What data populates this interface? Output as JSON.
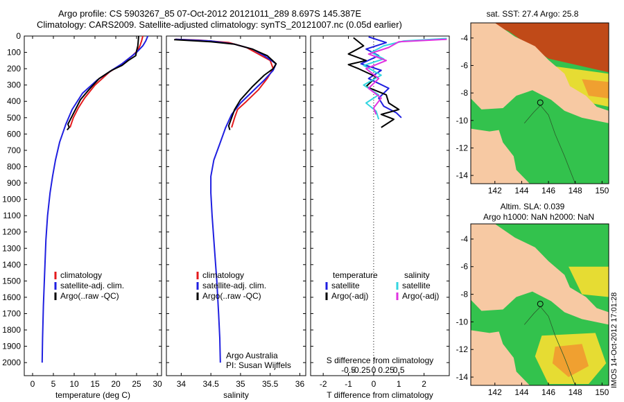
{
  "header": {
    "line1": "Argo profile: CS 5903267_85 07-Oct-2012 20121011_289 8.697S 145.387E",
    "line2": "Climatology: CARS2009. Satellite-adjusted climatology: synTS_20121007.nc (0.05d earlier)"
  },
  "colors": {
    "climatology": "#e31a1c",
    "satellite": "#1f1fe0",
    "argo": "#000000",
    "sat_salinity": "#33d6e0",
    "argo_salinity_adj": "#e033e0",
    "land": "#f7c9a3",
    "sea_green": "#33c24d",
    "sea_yellow": "#e6dc33",
    "sea_orange": "#f0a030",
    "sea_red": "#c04a18"
  },
  "chart_data": [
    {
      "type": "line",
      "id": "temperature",
      "xlabel": "temperature (deg C)",
      "ylabel": "",
      "xlim": [
        -2,
        31
      ],
      "ylim": [
        2080,
        0
      ],
      "xticks": [
        0,
        5,
        10,
        15,
        20,
        25,
        30
      ],
      "yticks": [
        0,
        100,
        200,
        300,
        400,
        500,
        600,
        700,
        800,
        900,
        1000,
        1100,
        1200,
        1300,
        1400,
        1500,
        1600,
        1700,
        1800,
        1900,
        2000
      ],
      "legend": [
        "climatology",
        "satellite-adj. clim.",
        "Argo(..raw -QC)"
      ],
      "series": [
        {
          "name": "climatology",
          "x": [
            26.5,
            26.2,
            25.8,
            25.2,
            24.0,
            22.5,
            21.0,
            18.5,
            15.0,
            12.5,
            11.0,
            9.8,
            9.0
          ],
          "y": [
            0,
            30,
            60,
            90,
            120,
            150,
            180,
            220,
            300,
            380,
            440,
            500,
            560
          ]
        },
        {
          "name": "satellite-adj. clim.",
          "x": [
            27.7,
            27.2,
            26.5,
            25.0,
            23.5,
            21.5,
            19.0,
            15.5,
            12.0,
            9.5,
            8.0,
            6.5,
            5.5,
            4.8,
            4.2,
            3.6,
            3.2,
            2.9,
            2.6,
            2.4,
            2.3
          ],
          "y": [
            0,
            30,
            60,
            100,
            130,
            170,
            210,
            270,
            350,
            450,
            540,
            650,
            760,
            860,
            960,
            1100,
            1250,
            1450,
            1650,
            1850,
            2000
          ]
        },
        {
          "name": "Argo(..raw -QC)",
          "x": [
            25.5,
            25.4,
            25.3,
            25.0,
            24.8,
            23.0,
            21.5,
            19.0,
            16.0,
            13.5,
            11.5,
            10.5,
            9.5,
            8.5,
            8.8,
            8.3
          ],
          "y": [
            0,
            30,
            60,
            90,
            120,
            150,
            180,
            210,
            260,
            330,
            390,
            440,
            490,
            540,
            560,
            575
          ]
        }
      ]
    },
    {
      "type": "line",
      "id": "salinity",
      "xlabel": "salinity",
      "ylabel": "",
      "xlim": [
        33.75,
        36.1
      ],
      "ylim": [
        2080,
        0
      ],
      "xticks": [
        34,
        34.5,
        35,
        35.5,
        36
      ],
      "xticklabels": [
        "34",
        "34.5",
        "35",
        "35.5",
        "36"
      ],
      "legend": [
        "climatology",
        "satellite-adj. clim.",
        "Argo(..raw -QC)"
      ],
      "annotation": [
        "Argo Australia",
        "PI: Susan Wijffels"
      ],
      "series": [
        {
          "name": "climatology",
          "x": [
            33.9,
            34.3,
            34.8,
            35.1,
            35.3,
            35.5,
            35.55,
            35.45,
            35.3,
            35.1,
            34.95,
            34.9,
            34.85
          ],
          "y": [
            20,
            25,
            40,
            70,
            110,
            150,
            200,
            260,
            330,
            400,
            450,
            500,
            560
          ]
        },
        {
          "name": "satellite-adj. clim.",
          "x": [
            33.9,
            34.5,
            34.9,
            35.2,
            35.4,
            35.6,
            35.55,
            35.4,
            35.2,
            35.0,
            34.85,
            34.75,
            34.65,
            34.55,
            34.5,
            34.5,
            34.52,
            34.56,
            34.6,
            34.63,
            34.65,
            34.66
          ],
          "y": [
            20,
            30,
            50,
            80,
            120,
            170,
            210,
            270,
            340,
            410,
            480,
            560,
            660,
            760,
            860,
            960,
            1100,
            1300,
            1500,
            1700,
            1850,
            2000
          ]
        },
        {
          "name": "Argo(..raw -QC)",
          "x": [
            33.88,
            34.5,
            34.9,
            35.2,
            35.45,
            35.6,
            35.55,
            35.4,
            35.2,
            35.0,
            34.9,
            34.85,
            34.8,
            34.82
          ],
          "y": [
            22,
            35,
            50,
            80,
            120,
            170,
            200,
            240,
            310,
            390,
            450,
            500,
            550,
            575
          ]
        }
      ]
    },
    {
      "type": "line",
      "id": "differences",
      "xlabel": "T difference from climatology",
      "xlabel2": "S difference from climatology",
      "xlim": [
        -2.5,
        3.0
      ],
      "ylim": [
        2080,
        0
      ],
      "xticks": [
        -2,
        -1,
        0,
        1,
        2
      ],
      "xticks_s": [
        -0.5,
        -0.25,
        0,
        0.25,
        0.5
      ],
      "xticklabels_s": [
        "-0.5",
        "-0.25",
        "0",
        "0.25",
        "0.5"
      ],
      "legend_titles": [
        "temperature",
        "salinity"
      ],
      "legend": [
        "satellite",
        "Argo(-adj)",
        "satellite",
        "Argo(-adj)"
      ],
      "series": [
        {
          "name": "temperature satellite",
          "x": [
            -0.2,
            0.5,
            -0.3,
            0.2,
            -0.5,
            0.3,
            -0.2,
            0.6,
            0.2,
            0.4,
            0.9,
            1.1
          ],
          "y": [
            5,
            40,
            80,
            120,
            170,
            210,
            260,
            320,
            380,
            430,
            470,
            500
          ]
        },
        {
          "name": "temperature Argo(-adj)",
          "x": [
            -0.8,
            -0.4,
            -1.0,
            -0.3,
            -1.0,
            -0.6,
            0.1,
            -0.3,
            0.5,
            0.6,
            1.0,
            0.3,
            0.8,
            0.3
          ],
          "y": [
            10,
            60,
            110,
            150,
            175,
            200,
            250,
            310,
            360,
            410,
            450,
            480,
            510,
            560
          ]
        },
        {
          "name": "salinity satellite",
          "x": [
            2.9,
            1.2,
            0.4,
            -0.1,
            0.4,
            -0.4,
            0.3,
            -0.4,
            0.2,
            -0.3,
            0.1,
            0.2
          ],
          "y": [
            15,
            30,
            60,
            100,
            140,
            180,
            240,
            300,
            360,
            410,
            460,
            510
          ]
        },
        {
          "name": "salinity Argo(-adj)",
          "x": [
            2.9,
            1.0,
            0.6,
            -0.2,
            0.5,
            -0.3,
            0.2,
            -0.2,
            0.3,
            0.0,
            0.1
          ],
          "y": [
            20,
            35,
            70,
            110,
            150,
            200,
            260,
            320,
            380,
            440,
            480
          ]
        }
      ]
    },
    {
      "type": "heatmap",
      "id": "sst_map",
      "title": "sat. SST: 27.4 Argo: 25.8",
      "xlim": [
        140.2,
        150.5
      ],
      "ylim": [
        -14.6,
        -2.9
      ],
      "xticks": [
        142,
        144,
        146,
        148,
        150
      ],
      "yticks": [
        -4,
        -6,
        -8,
        -10,
        -12,
        -14
      ],
      "argo_position": [
        145.387,
        -8.697
      ]
    },
    {
      "type": "heatmap",
      "id": "sla_map",
      "title": "Altim. SLA: 0.039",
      "subtitle": "Argo h1000: NaN h2000: NaN",
      "xlim": [
        140.2,
        150.5
      ],
      "ylim": [
        -14.6,
        -2.9
      ],
      "xticks": [
        142,
        144,
        146,
        148,
        150
      ],
      "yticks": [
        -4,
        -6,
        -8,
        -10,
        -12,
        -14
      ],
      "argo_position": [
        145.387,
        -8.697
      ]
    }
  ],
  "footer": {
    "stamp": "IMOS 14-Oct-2012 17:01:28"
  }
}
